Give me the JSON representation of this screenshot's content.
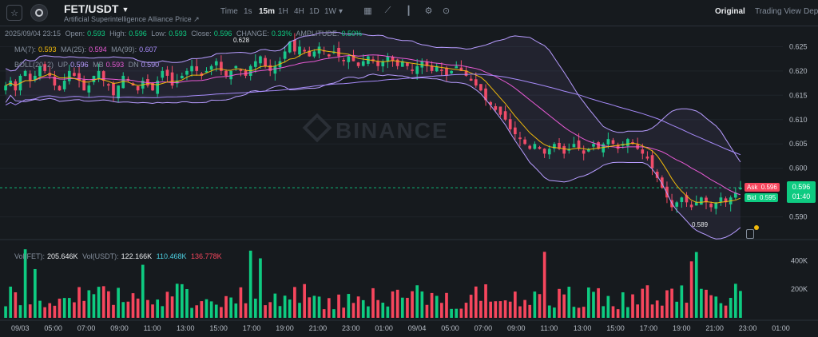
{
  "header": {
    "pair": "FET/USDT",
    "subtitle": "Artificial Superintelligence Alliance Price",
    "timeframes": [
      "Time",
      "1s",
      "15m",
      "1H",
      "4H",
      "1D",
      "1W"
    ],
    "active_timeframe": "15m",
    "tools": [
      "indicator-icon",
      "chart-type-icon",
      "candle-icon",
      "settings-icon",
      "compare-icon"
    ],
    "views": [
      "Original",
      "Trading View",
      "Depth"
    ],
    "active_view": "Original"
  },
  "ohlc": {
    "date": "2025/09/04 23:15",
    "open_label": "Open:",
    "open": "0.593",
    "high_label": "High:",
    "high": "0.596",
    "low_label": "Low:",
    "low": "0.593",
    "close_label": "Close:",
    "close": "0.596",
    "change_label": "CHANGE:",
    "change": "0.33%",
    "amp_label": "AMPLITUDE:",
    "amp": "0.50%"
  },
  "ma": {
    "ma7_label": "MA(7):",
    "ma7": "0.593",
    "ma25_label": "MA(25):",
    "ma25": "0.594",
    "ma99_label": "MA(99):",
    "ma99": "0.607"
  },
  "boll": {
    "label": "BOLL(20, 2)",
    "up_label": "UP",
    "up": "0.596",
    "mb_label": "MB",
    "mb": "0.593",
    "dn_label": "DN",
    "dn": "0.590"
  },
  "volume": {
    "vol_fet_label": "Vol(FET):",
    "vol_fet": "205.646K",
    "vol_usdt_label": "Vol(USDT):",
    "vol_usdt": "122.166K",
    "ma1": "110.468K",
    "ma2": "136.778K"
  },
  "price_axis": [
    "0.625",
    "0.620",
    "0.615",
    "0.610",
    "0.605",
    "0.600",
    "0.596",
    "0.590"
  ],
  "volume_axis": [
    "400K",
    "200K"
  ],
  "time_axis": [
    "09/03",
    "05:00",
    "07:00",
    "09:00",
    "11:00",
    "13:00",
    "15:00",
    "17:00",
    "19:00",
    "21:00",
    "23:00",
    "01:00",
    "09/04",
    "05:00",
    "07:00",
    "09:00",
    "11:00",
    "13:00",
    "15:00",
    "17:00",
    "19:00",
    "21:00",
    "23:00",
    "01:00"
  ],
  "markers": {
    "high": "0.628",
    "low": "0.589"
  },
  "orderbook": {
    "ask_label": "Ask",
    "ask": "0.596",
    "bid_label": "Bid",
    "bid": "0.595",
    "last_price": "0.596",
    "countdown": "01:40"
  },
  "watermark": "BINANCE",
  "colors": {
    "up": "#0ecb81",
    "down": "#f6465d",
    "ma7": "#f0b90b",
    "ma25": "#e85ad5",
    "ma99": "#a78bfa",
    "boll": "#b79cff"
  },
  "chart_data": {
    "type": "candlestick",
    "price_range": [
      0.586,
      0.629
    ],
    "volume_range": [
      0,
      480000
    ],
    "closes": [
      0.617,
      0.618,
      0.616,
      0.619,
      0.62,
      0.618,
      0.619,
      0.621,
      0.62,
      0.619,
      0.617,
      0.616,
      0.618,
      0.62,
      0.619,
      0.618,
      0.616,
      0.617,
      0.619,
      0.62,
      0.618,
      0.617,
      0.615,
      0.617,
      0.619,
      0.618,
      0.617,
      0.616,
      0.618,
      0.617,
      0.616,
      0.618,
      0.62,
      0.619,
      0.617,
      0.618,
      0.619,
      0.62,
      0.621,
      0.62,
      0.619,
      0.62,
      0.621,
      0.622,
      0.62,
      0.619,
      0.62,
      0.621,
      0.62,
      0.619,
      0.621,
      0.622,
      0.623,
      0.621,
      0.62,
      0.621,
      0.622,
      0.624,
      0.626,
      0.624,
      0.625,
      0.624,
      0.623,
      0.624,
      0.625,
      0.624,
      0.623,
      0.624,
      0.623,
      0.622,
      0.623,
      0.622,
      0.621,
      0.622,
      0.623,
      0.622,
      0.621,
      0.622,
      0.623,
      0.622,
      0.621,
      0.622,
      0.621,
      0.62,
      0.621,
      0.622,
      0.621,
      0.62,
      0.621,
      0.62,
      0.619,
      0.62,
      0.621,
      0.62,
      0.619,
      0.618,
      0.617,
      0.616,
      0.614,
      0.613,
      0.612,
      0.611,
      0.61,
      0.608,
      0.607,
      0.606,
      0.605,
      0.604,
      0.605,
      0.604,
      0.603,
      0.604,
      0.605,
      0.604,
      0.603,
      0.604,
      0.605,
      0.604,
      0.603,
      0.604,
      0.605,
      0.604,
      0.605,
      0.606,
      0.605,
      0.604,
      0.605,
      0.606,
      0.605,
      0.604,
      0.603,
      0.602,
      0.6,
      0.598,
      0.596,
      0.594,
      0.592,
      0.593,
      0.594,
      0.593,
      0.592,
      0.593,
      0.594,
      0.593,
      0.592,
      0.593,
      0.594,
      0.593,
      0.594,
      0.595,
      0.596
    ]
  }
}
